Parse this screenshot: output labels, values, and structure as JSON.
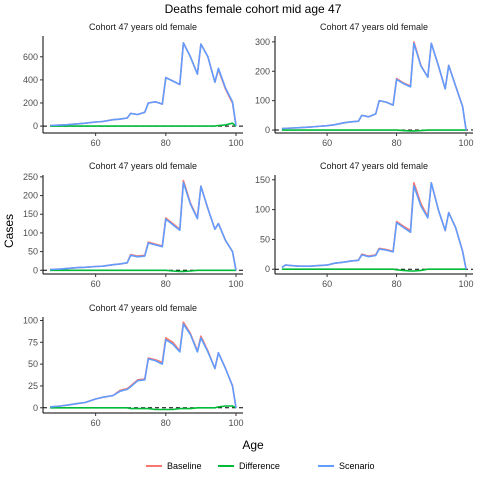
{
  "figure": {
    "title": "Deaths female cohort mid age 47",
    "xlabel": "Age",
    "ylabel": "Cases"
  },
  "legend": {
    "placement": "bottom",
    "items": [
      {
        "name": "Baseline",
        "color": "#F8766D"
      },
      {
        "name": "Difference",
        "color": "#00BA38"
      },
      {
        "name": "Scenario",
        "color": "#619CFF"
      }
    ]
  },
  "chart_data": [
    {
      "type": "line",
      "title": "Cohort 47 years old female",
      "xlim": [
        45,
        102
      ],
      "ylim": [
        -60,
        780
      ],
      "xticks": [
        60,
        80,
        100
      ],
      "yticks": [
        0,
        200,
        400,
        600
      ],
      "x": [
        47,
        50,
        52,
        55,
        57,
        60,
        62,
        65,
        67,
        69,
        70,
        72,
        74,
        75,
        77,
        79,
        80,
        82,
        84,
        85,
        87,
        89,
        90,
        92,
        94,
        95,
        97,
        99,
        100
      ],
      "series": [
        {
          "name": "Baseline",
          "color": "#F8766D",
          "values": [
            5,
            8,
            12,
            20,
            25,
            35,
            40,
            55,
            60,
            70,
            110,
            100,
            120,
            200,
            210,
            190,
            420,
            390,
            360,
            720,
            600,
            450,
            710,
            600,
            380,
            490,
            320,
            200,
            5
          ]
        },
        {
          "name": "Difference",
          "color": "#00BA38",
          "values": [
            0,
            0,
            0,
            0,
            0,
            0,
            0,
            0,
            0,
            0,
            0,
            0,
            0,
            0,
            0,
            0,
            0,
            0,
            0,
            0,
            0,
            0,
            0,
            0,
            0,
            5,
            10,
            25,
            0
          ]
        },
        {
          "name": "Scenario",
          "color": "#619CFF",
          "values": [
            5,
            8,
            12,
            20,
            25,
            35,
            40,
            55,
            60,
            70,
            110,
            100,
            120,
            200,
            210,
            190,
            420,
            390,
            360,
            720,
            600,
            450,
            710,
            600,
            380,
            500,
            330,
            210,
            5
          ]
        }
      ]
    },
    {
      "type": "line",
      "title": "Cohort 47 years old female",
      "xlim": [
        45,
        102
      ],
      "ylim": [
        -10,
        320
      ],
      "xticks": [
        60,
        80,
        100
      ],
      "yticks": [
        0,
        100,
        200,
        300
      ],
      "x": [
        47,
        50,
        52,
        55,
        57,
        60,
        62,
        65,
        67,
        69,
        70,
        72,
        74,
        75,
        77,
        79,
        80,
        82,
        84,
        85,
        87,
        89,
        90,
        92,
        94,
        95,
        97,
        99,
        100
      ],
      "series": [
        {
          "name": "Baseline",
          "color": "#F8766D",
          "values": [
            5,
            7,
            8,
            10,
            12,
            15,
            18,
            25,
            28,
            30,
            50,
            45,
            55,
            100,
            95,
            85,
            175,
            160,
            150,
            300,
            220,
            180,
            295,
            220,
            140,
            220,
            150,
            80,
            0
          ]
        },
        {
          "name": "Difference",
          "color": "#00BA38",
          "values": [
            0,
            0,
            0,
            0,
            0,
            0,
            0,
            0,
            0,
            0,
            0,
            0,
            0,
            0,
            0,
            0,
            0,
            -2,
            -3,
            -3,
            -2,
            0,
            0,
            0,
            0,
            0,
            0,
            0,
            0
          ]
        },
        {
          "name": "Scenario",
          "color": "#619CFF",
          "values": [
            5,
            7,
            8,
            10,
            12,
            15,
            18,
            25,
            28,
            30,
            50,
            45,
            55,
            100,
            95,
            85,
            172,
            158,
            147,
            295,
            218,
            180,
            295,
            220,
            140,
            220,
            150,
            80,
            0
          ]
        }
      ]
    },
    {
      "type": "line",
      "title": "Cohort 47 years old female",
      "xlim": [
        45,
        102
      ],
      "ylim": [
        -10,
        255
      ],
      "xticks": [
        60,
        80,
        100
      ],
      "yticks": [
        0,
        50,
        100,
        150,
        200,
        250
      ],
      "x": [
        47,
        50,
        52,
        55,
        57,
        60,
        62,
        65,
        67,
        69,
        70,
        72,
        74,
        75,
        77,
        79,
        80,
        82,
        84,
        85,
        87,
        89,
        90,
        92,
        94,
        95,
        97,
        99,
        100
      ],
      "series": [
        {
          "name": "Baseline",
          "color": "#F8766D",
          "values": [
            2,
            3,
            5,
            7,
            8,
            10,
            11,
            15,
            17,
            20,
            42,
            38,
            40,
            75,
            70,
            65,
            140,
            125,
            110,
            240,
            180,
            140,
            225,
            165,
            110,
            125,
            80,
            50,
            0
          ]
        },
        {
          "name": "Difference",
          "color": "#00BA38",
          "values": [
            0,
            0,
            0,
            0,
            0,
            0,
            0,
            0,
            0,
            0,
            0,
            0,
            0,
            0,
            0,
            0,
            0,
            -2,
            -3,
            -3,
            -2,
            0,
            0,
            0,
            0,
            0,
            0,
            0,
            0
          ]
        },
        {
          "name": "Scenario",
          "color": "#619CFF",
          "values": [
            2,
            3,
            5,
            7,
            8,
            10,
            11,
            15,
            17,
            20,
            40,
            36,
            38,
            73,
            68,
            63,
            137,
            122,
            107,
            235,
            177,
            138,
            225,
            165,
            110,
            125,
            80,
            50,
            0
          ]
        }
      ]
    },
    {
      "type": "line",
      "title": "Cohort 47 years old female",
      "xlim": [
        45,
        102
      ],
      "ylim": [
        -8,
        158
      ],
      "xticks": [
        60,
        80,
        100
      ],
      "yticks": [
        0,
        50,
        100,
        150
      ],
      "x": [
        47,
        48,
        50,
        52,
        55,
        57,
        60,
        62,
        65,
        67,
        69,
        70,
        72,
        74,
        75,
        77,
        79,
        80,
        82,
        84,
        85,
        87,
        89,
        90,
        92,
        94,
        95,
        97,
        99,
        100
      ],
      "series": [
        {
          "name": "Baseline",
          "color": "#F8766D",
          "values": [
            3,
            7,
            6,
            5,
            5,
            6,
            7,
            10,
            12,
            14,
            15,
            25,
            22,
            24,
            35,
            33,
            30,
            80,
            72,
            65,
            145,
            110,
            88,
            145,
            100,
            65,
            95,
            70,
            30,
            0
          ]
        },
        {
          "name": "Difference",
          "color": "#00BA38",
          "values": [
            0,
            0,
            0,
            0,
            0,
            0,
            0,
            0,
            0,
            0,
            0,
            0,
            0,
            0,
            0,
            0,
            0,
            -1,
            -2,
            -3,
            -3,
            -2,
            0,
            0,
            0,
            0,
            0,
            0,
            0,
            0
          ]
        },
        {
          "name": "Scenario",
          "color": "#619CFF",
          "values": [
            3,
            7,
            6,
            5,
            5,
            6,
            7,
            10,
            12,
            14,
            15,
            24,
            21,
            23,
            34,
            32,
            29,
            78,
            70,
            62,
            140,
            106,
            86,
            145,
            100,
            65,
            95,
            70,
            30,
            0
          ]
        }
      ]
    },
    {
      "type": "line",
      "title": "Cohort 47 years old female",
      "xlim": [
        45,
        102
      ],
      "ylim": [
        -6,
        104
      ],
      "xticks": [
        60,
        80,
        100
      ],
      "yticks": [
        0,
        25,
        50,
        75,
        100
      ],
      "x": [
        47,
        50,
        52,
        55,
        57,
        60,
        62,
        65,
        67,
        69,
        70,
        72,
        74,
        75,
        77,
        79,
        80,
        82,
        84,
        85,
        87,
        89,
        90,
        92,
        94,
        95,
        97,
        99,
        100
      ],
      "series": [
        {
          "name": "Baseline",
          "color": "#F8766D",
          "values": [
            1,
            2,
            3,
            5,
            6,
            10,
            12,
            14,
            20,
            22,
            25,
            32,
            33,
            57,
            55,
            52,
            80,
            75,
            65,
            98,
            85,
            65,
            82,
            65,
            45,
            63,
            45,
            25,
            0
          ]
        },
        {
          "name": "Difference",
          "color": "#00BA38",
          "values": [
            0,
            0,
            0,
            0,
            0,
            0,
            0,
            0,
            0,
            0,
            -1,
            -1,
            -1,
            -1,
            -2,
            -2,
            -2,
            -2,
            -1,
            -1,
            -1,
            0,
            0,
            0,
            0,
            1,
            2,
            2,
            0
          ]
        },
        {
          "name": "Scenario",
          "color": "#619CFF",
          "values": [
            1,
            2,
            3,
            5,
            6,
            10,
            12,
            14,
            19,
            21,
            24,
            31,
            32,
            56,
            54,
            50,
            78,
            73,
            64,
            96,
            84,
            64,
            80,
            64,
            45,
            63,
            45,
            25,
            0
          ]
        }
      ]
    }
  ]
}
